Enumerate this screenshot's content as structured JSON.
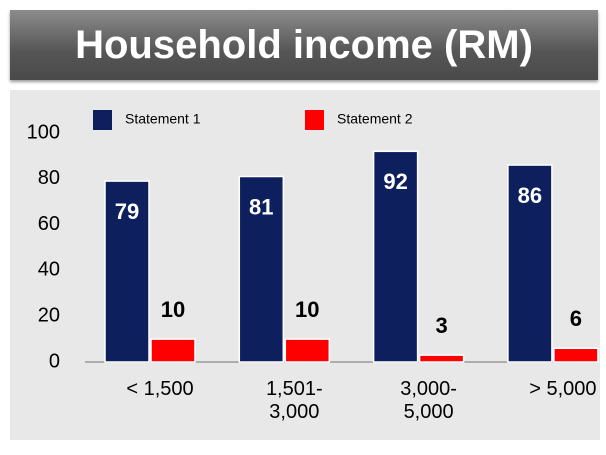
{
  "chart_data": {
    "type": "bar",
    "title": "Household income (RM)",
    "categories": [
      "< 1,500",
      "1,501-3,000",
      "3,000-5,000",
      "> 5,000"
    ],
    "series": [
      {
        "name": "Statement 1",
        "color": "#0d1f5c",
        "values": [
          79,
          81,
          92,
          86
        ]
      },
      {
        "name": "Statement 2",
        "color": "#ff0000",
        "values": [
          10,
          10,
          3,
          6
        ]
      }
    ],
    "ylim": [
      0,
      100
    ],
    "yticks": [
      0,
      20,
      40,
      60,
      80,
      100
    ],
    "grid": false
  }
}
